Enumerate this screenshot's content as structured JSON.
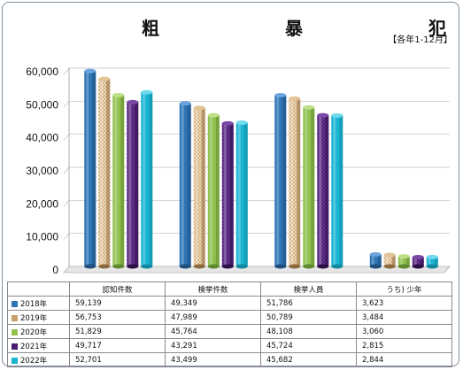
{
  "title": "粗　　暴　　犯",
  "period_note": "【各年1-12月】",
  "chart_data": {
    "type": "bar",
    "title": "粗　　暴　　犯",
    "subtitle": "【各年1-12月】",
    "categories": [
      "認知件数",
      "検挙件数",
      "検挙人員",
      "うち) 少年"
    ],
    "series": [
      {
        "name": "2018年",
        "color": "#2e75b6",
        "values": [
          59139,
          49349,
          51786,
          3623
        ],
        "labels": [
          "59,139",
          "49,349",
          "51,786",
          "3,623"
        ]
      },
      {
        "name": "2019年",
        "color": "#c9a16c",
        "values": [
          56753,
          47989,
          50789,
          3484
        ],
        "labels": [
          "56,753",
          "47,989",
          "50,789",
          "3,484"
        ]
      },
      {
        "name": "2020年",
        "color": "#92c150",
        "values": [
          51829,
          45764,
          48108,
          3060
        ],
        "labels": [
          "51,829",
          "45,764",
          "48,108",
          "3,060"
        ]
      },
      {
        "name": "2021年",
        "color": "#4b1a73",
        "values": [
          49717,
          43291,
          45724,
          2815
        ],
        "labels": [
          "49,717",
          "43,291",
          "45,724",
          "2,815"
        ]
      },
      {
        "name": "2022年",
        "color": "#1ab5d3",
        "values": [
          52701,
          43499,
          45682,
          2844
        ],
        "labels": [
          "52,701",
          "43,499",
          "45,682",
          "2,844"
        ]
      }
    ],
    "ylim": [
      0,
      60000
    ],
    "yticks": [
      "0",
      "10,000",
      "20,000",
      "30,000",
      "40,000",
      "50,000",
      "60,000"
    ],
    "grid": true,
    "legend": "data-table-left"
  }
}
